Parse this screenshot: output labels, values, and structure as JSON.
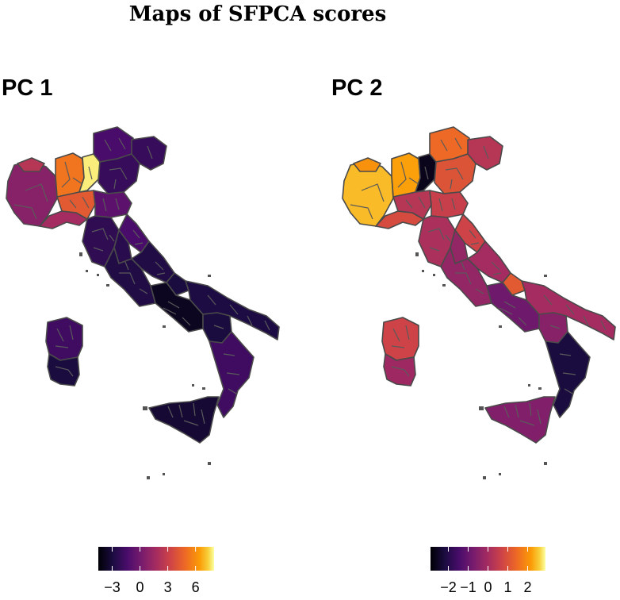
{
  "title": "Maps of SFPCA scores",
  "colormap": "inferno",
  "panels": [
    {
      "id": "pc1",
      "label": "PC 1",
      "legend": {
        "ticks": [
          "−3",
          "0",
          "3",
          "6"
        ],
        "tick_values": [
          -3,
          0,
          3,
          6
        ],
        "min": -4.5,
        "max": 8
      },
      "regions": {
        "piedmont": 0.42,
        "aosta": 0.55,
        "lombardy_west": 0.78,
        "lombardy_east": 0.98,
        "liguria": 0.5,
        "trentino": 0.25,
        "veneto": 0.2,
        "friuli": 0.2,
        "emilia_west": 0.7,
        "emilia_east": 0.3,
        "tuscany": 0.18,
        "marche": 0.25,
        "umbria": 0.16,
        "lazio": 0.14,
        "abruzzo": 0.14,
        "molise": 0.12,
        "campania": 0.06,
        "apulia": 0.13,
        "basilicata": 0.12,
        "calabria": 0.22,
        "sicily": 0.1,
        "sardinia_north": 0.22,
        "sardinia_south": 0.12
      }
    },
    {
      "id": "pc2",
      "label": "PC 2",
      "legend": {
        "ticks": [
          "−2",
          "−1",
          "0",
          "1",
          "2"
        ],
        "tick_values": [
          -2,
          -1,
          0,
          1,
          2
        ],
        "min": -2.9,
        "max": 2.9
      },
      "regions": {
        "piedmont": 0.92,
        "aosta": 0.85,
        "lombardy_west": 0.88,
        "lombardy_east": 0.05,
        "liguria": 0.65,
        "trentino": 0.75,
        "veneto": 0.68,
        "friuli": 0.55,
        "emilia_west": 0.55,
        "emilia_east": 0.6,
        "tuscany": 0.52,
        "marche": 0.62,
        "umbria": 0.45,
        "lazio": 0.45,
        "abruzzo": 0.5,
        "molise": 0.7,
        "campania": 0.35,
        "apulia": 0.5,
        "basilicata": 0.42,
        "calabria": 0.12,
        "sicily": 0.4,
        "sardinia_north": 0.62,
        "sardinia_south": 0.48
      }
    }
  ]
}
